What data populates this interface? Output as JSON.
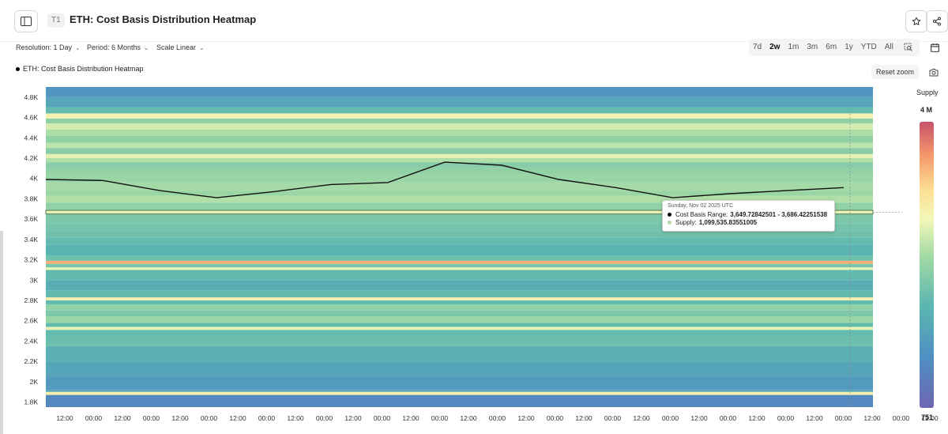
{
  "header": {
    "badge": "T1",
    "title": "ETH: Cost Basis Distribution Heatmap",
    "star_icon": "star-icon",
    "share_icon": "share-icon",
    "sidebar_icon": "sidebar-toggle-icon"
  },
  "controls": {
    "resolution": "Resolution: 1 Day",
    "period": "Period: 6 Months",
    "scale": "Scale Linear"
  },
  "ranges": [
    {
      "label": "7d",
      "active": false
    },
    {
      "label": "2w",
      "active": true
    },
    {
      "label": "1m",
      "active": false
    },
    {
      "label": "3m",
      "active": false
    },
    {
      "label": "6m",
      "active": false
    },
    {
      "label": "1y",
      "active": false
    },
    {
      "label": "YTD",
      "active": false
    },
    {
      "label": "All",
      "active": false
    }
  ],
  "legend": {
    "series": "ETH: Cost Basis Distribution Heatmap"
  },
  "reset_zoom": "Reset zoom",
  "tooltip": {
    "date": "Sunday, Nov 02 2025 UTC",
    "range_label": "Cost Basis Range:",
    "range_value": "3,649.72842501 - 3,686.42251538",
    "supply_label": "Supply:",
    "supply_value": "1,099,535.83551005",
    "range_dot_color": "#000000",
    "supply_dot_color": "#b9d9a6"
  },
  "colorscale": {
    "title": "Supply",
    "max_label": "4 M",
    "min_label": "751",
    "stops": [
      "#6e66b0",
      "#4f90c3",
      "#5cb7b0",
      "#9ed8a4",
      "#f2f7b7",
      "#fddf95",
      "#f69a6b",
      "#c8526a"
    ]
  },
  "chart_data": {
    "type": "heatmap",
    "title": "",
    "ylim": [
      1750,
      4900
    ],
    "y_ticks": [
      1800,
      2000,
      2200,
      2400,
      2600,
      2800,
      3000,
      3200,
      3400,
      3600,
      3800,
      4000,
      4200,
      4400,
      4600,
      4800
    ],
    "y_tick_labels": [
      "1.8K",
      "2K",
      "2.2K",
      "2.4K",
      "2.6K",
      "2.8K",
      "3K",
      "3.2K",
      "3.4K",
      "3.6K",
      "3.8K",
      "4K",
      "4.2K",
      "4.4K",
      "4.6K",
      "4.8K"
    ],
    "x_tick_labels": [
      "12:00",
      "00:00",
      "12:00",
      "00:00",
      "12:00",
      "00:00",
      "12:00",
      "00:00",
      "12:00",
      "00:00",
      "12:00",
      "00:00",
      "12:00",
      "00:00",
      "12:00",
      "00:00",
      "12:00",
      "00:00",
      "12:00",
      "00:00",
      "12:00",
      "00:00",
      "12:00",
      "00:00",
      "12:00",
      "00:00",
      "12:00",
      "00:00",
      "12:00",
      "00:00",
      "12:00",
      "00:00"
    ],
    "price_series": {
      "name": "ETH price",
      "x_index": [
        0,
        2,
        4,
        6,
        8,
        10,
        12,
        14,
        16,
        18,
        20,
        22,
        24,
        26,
        28,
        30,
        32,
        34
      ],
      "values": [
        3990,
        3980,
        3880,
        3810,
        3870,
        3940,
        3960,
        4160,
        4130,
        3990,
        3910,
        3810,
        3850,
        3880,
        3910,
        null,
        null,
        null
      ]
    },
    "bands": [
      {
        "y0": 1750,
        "y1": 1870,
        "value": 0.12
      },
      {
        "y0": 1870,
        "y1": 1900,
        "value": 0.62
      },
      {
        "y0": 1900,
        "y1": 1920,
        "value": 0.22
      },
      {
        "y0": 1920,
        "y1": 2050,
        "value": 0.18
      },
      {
        "y0": 2050,
        "y1": 2200,
        "value": 0.22
      },
      {
        "y0": 2200,
        "y1": 2350,
        "value": 0.26
      },
      {
        "y0": 2350,
        "y1": 2450,
        "value": 0.32
      },
      {
        "y0": 2450,
        "y1": 2510,
        "value": 0.3
      },
      {
        "y0": 2510,
        "y1": 2540,
        "value": 0.55
      },
      {
        "y0": 2540,
        "y1": 2580,
        "value": 0.3
      },
      {
        "y0": 2580,
        "y1": 2640,
        "value": 0.42
      },
      {
        "y0": 2640,
        "y1": 2700,
        "value": 0.36
      },
      {
        "y0": 2700,
        "y1": 2760,
        "value": 0.4
      },
      {
        "y0": 2760,
        "y1": 2800,
        "value": 0.3
      },
      {
        "y0": 2800,
        "y1": 2830,
        "value": 0.62
      },
      {
        "y0": 2830,
        "y1": 2900,
        "value": 0.3
      },
      {
        "y0": 2900,
        "y1": 3000,
        "value": 0.25
      },
      {
        "y0": 3000,
        "y1": 3100,
        "value": 0.3
      },
      {
        "y0": 3100,
        "y1": 3125,
        "value": 0.56
      },
      {
        "y0": 3125,
        "y1": 3160,
        "value": 0.35
      },
      {
        "y0": 3160,
        "y1": 3190,
        "value": 0.82
      },
      {
        "y0": 3190,
        "y1": 3240,
        "value": 0.33
      },
      {
        "y0": 3240,
        "y1": 3350,
        "value": 0.27
      },
      {
        "y0": 3350,
        "y1": 3420,
        "value": 0.3
      },
      {
        "y0": 3420,
        "y1": 3480,
        "value": 0.33
      },
      {
        "y0": 3480,
        "y1": 3560,
        "value": 0.34
      },
      {
        "y0": 3560,
        "y1": 3650,
        "value": 0.36
      },
      {
        "y0": 3650,
        "y1": 3690,
        "value": 0.52
      },
      {
        "y0": 3690,
        "y1": 3760,
        "value": 0.4
      },
      {
        "y0": 3760,
        "y1": 3830,
        "value": 0.46
      },
      {
        "y0": 3830,
        "y1": 3880,
        "value": 0.42
      },
      {
        "y0": 3880,
        "y1": 3960,
        "value": 0.44
      },
      {
        "y0": 3960,
        "y1": 4040,
        "value": 0.42
      },
      {
        "y0": 4040,
        "y1": 4100,
        "value": 0.4
      },
      {
        "y0": 4100,
        "y1": 4160,
        "value": 0.38
      },
      {
        "y0": 4160,
        "y1": 4200,
        "value": 0.46
      },
      {
        "y0": 4200,
        "y1": 4240,
        "value": 0.55
      },
      {
        "y0": 4240,
        "y1": 4300,
        "value": 0.38
      },
      {
        "y0": 4300,
        "y1": 4350,
        "value": 0.48
      },
      {
        "y0": 4350,
        "y1": 4420,
        "value": 0.4
      },
      {
        "y0": 4420,
        "y1": 4480,
        "value": 0.45
      },
      {
        "y0": 4480,
        "y1": 4540,
        "value": 0.52
      },
      {
        "y0": 4540,
        "y1": 4590,
        "value": 0.4
      },
      {
        "y0": 4590,
        "y1": 4640,
        "value": 0.6
      },
      {
        "y0": 4640,
        "y1": 4700,
        "value": 0.3
      },
      {
        "y0": 4700,
        "y1": 4800,
        "value": 0.22
      },
      {
        "y0": 4800,
        "y1": 4900,
        "value": 0.16
      }
    ],
    "highlight_band": {
      "y0": 3649.72842501,
      "y1": 3686.42251538,
      "value": 1099535.83551005
    },
    "grid": false
  }
}
